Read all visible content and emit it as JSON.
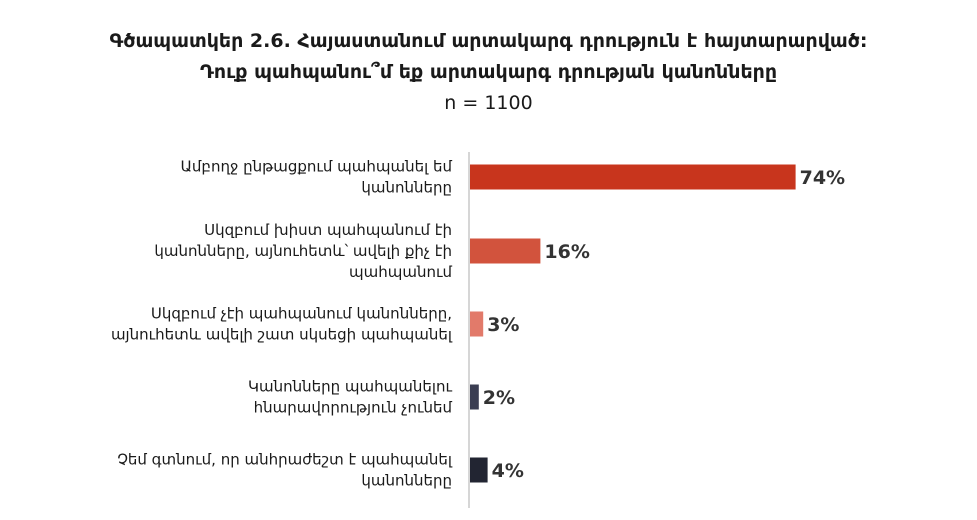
{
  "chart_data": {
    "type": "bar",
    "orientation": "horizontal",
    "title": "Գծապատկեր 2.6. Հայաստանում արտակարգ դրություն է հայտարարված: Դուք պահպանու՞մ եք արտակարգ դրության կանոնները",
    "title_lines": [
      "Գծապատկեր 2.6. Հայաստանում արտակարգ դրություն է հայտարարված:",
      "Դուք պահպանու՞մ եք արտակարգ դրության կանոնները"
    ],
    "subtitle": "n = 1100",
    "categories": [
      "Ամբողջ ընթացքում պահպանել եմ կանոնները",
      "Սկզբում խիստ պահպանում էի կանոնները, այնուհետև՝ ավելի քիչ էի պահպանում",
      "Սկզբում չէի պահպանում կանոնները, այնուհետև ավելի շատ սկսեցի պահպանել",
      "Կանոնները պահպանելու հնարավորություն չունեմ",
      "Չեմ գտնում, որ անհրաժեշտ է պահպանել կանոնները"
    ],
    "category_lines": [
      [
        "Ամբողջ ընթացքում պահպանել եմ",
        "կանոնները"
      ],
      [
        "Սկզբում խիստ պահպանում էի",
        "կանոնները, այնուհետև՝ ավելի քիչ էի",
        "պահպանում"
      ],
      [
        "Սկզբում չէի պահպանում կանոնները,",
        "այնուհետև ավելի շատ սկսեցի պահպանել"
      ],
      [
        "Կանոնները պահպանելու",
        "հնարավորություն չունեմ"
      ],
      [
        "Չեմ գտնում, որ անհրաժեշտ է պահպանել",
        "կանոնները"
      ]
    ],
    "values": [
      74,
      16,
      3,
      2,
      4
    ],
    "value_labels": [
      "74%",
      "16%",
      "3%",
      "2%",
      "4%"
    ],
    "bar_colors": [
      "#c8351d",
      "#d2533d",
      "#e27a6a",
      "#3a3d52",
      "#222532"
    ],
    "xlim": [
      0,
      100
    ],
    "grid": false,
    "legend": "none"
  }
}
